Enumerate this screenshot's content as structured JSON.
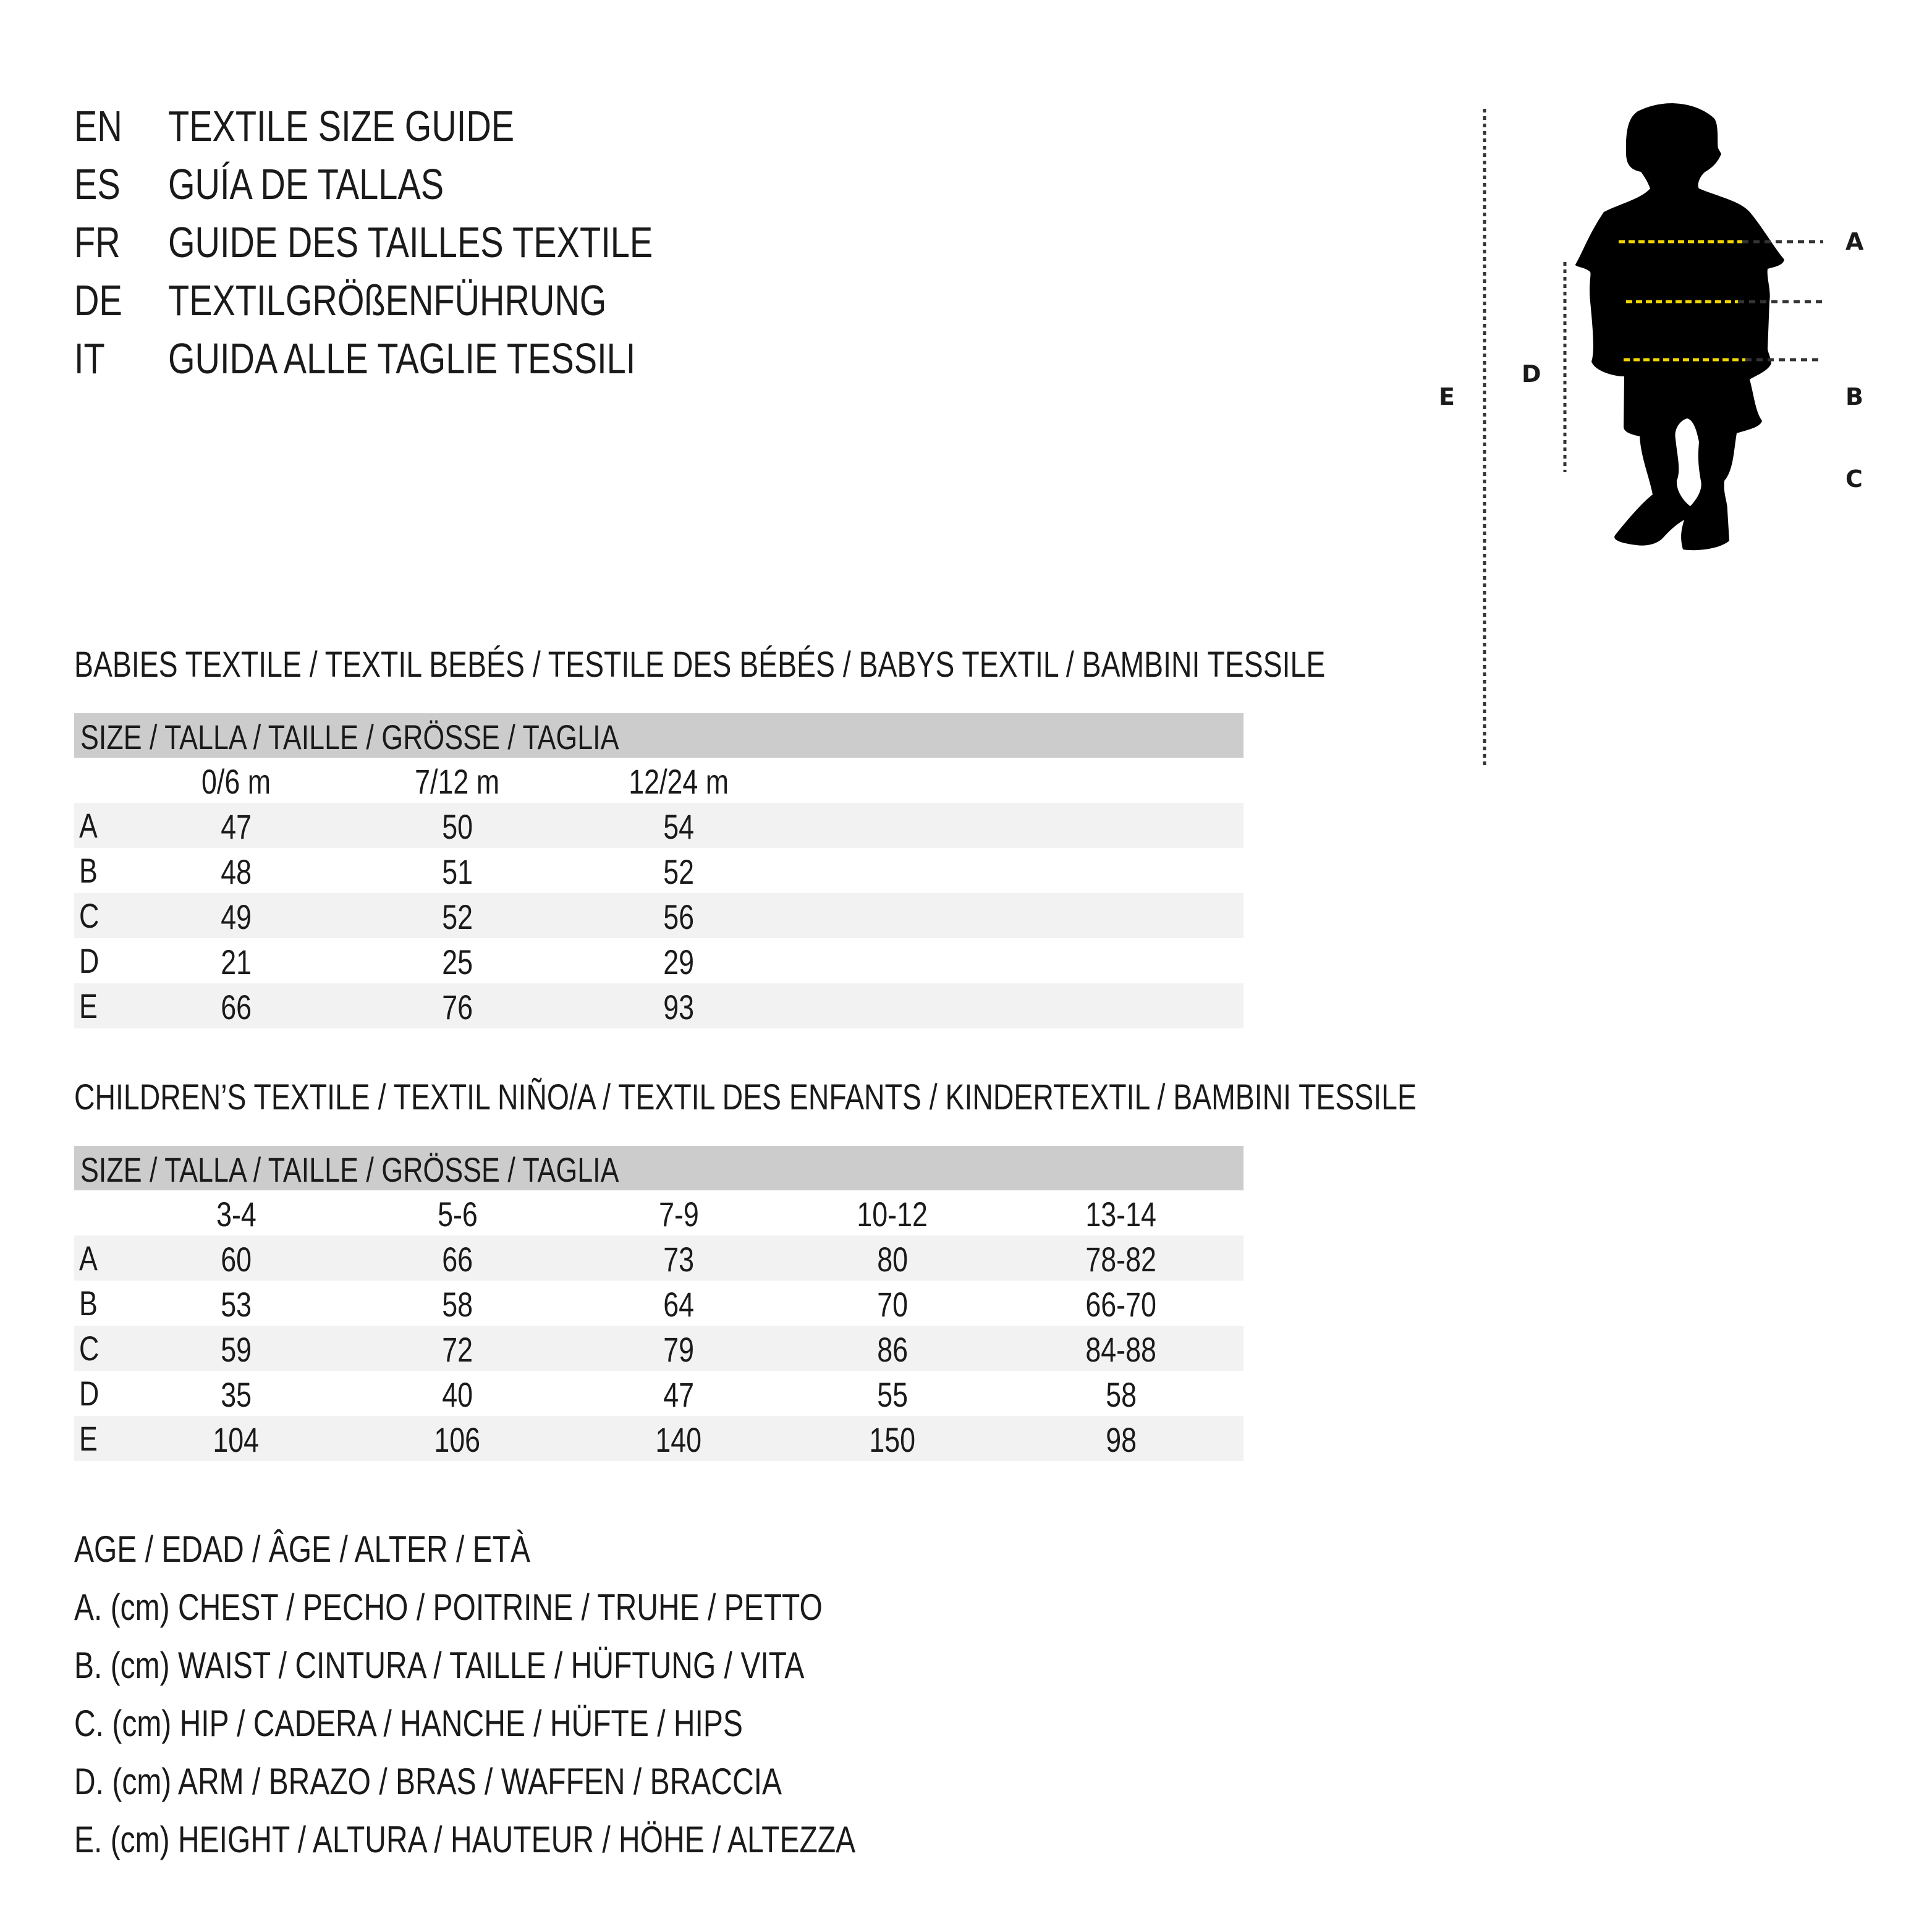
{
  "titles": [
    {
      "code": "EN",
      "text": "TEXTILE SIZE GUIDE"
    },
    {
      "code": "ES",
      "text": "GUÍA DE TALLAS"
    },
    {
      "code": "FR",
      "text": "GUIDE DES TAILLES TEXTILE"
    },
    {
      "code": "DE",
      "text": "TEXTILGRÖßENFÜHRUNG"
    },
    {
      "code": "IT",
      "text": "GUIDA ALLE TAGLIE TESSILI"
    }
  ],
  "figure": {
    "labels": {
      "A": "A",
      "B": "B",
      "C": "C",
      "D": "D",
      "E": "E"
    },
    "colors": {
      "measure_line": "#f2d600",
      "guide_line": "#333333",
      "silhouette": "#000000"
    }
  },
  "babies": {
    "heading": "BABIES TEXTILE / TEXTIL BEBÉS / TESTILE DES BÉBÉS / BABYS TEXTIL / BAMBINI TESSILE",
    "size_header": "SIZE / TALLA / TAILLE / GRÖSSE / TAGLIA",
    "columns": [
      "0/6 m",
      "7/12 m",
      "12/24 m"
    ],
    "rows": [
      {
        "label": "A",
        "values": [
          "47",
          "50",
          "54"
        ]
      },
      {
        "label": "B",
        "values": [
          "48",
          "51",
          "52"
        ]
      },
      {
        "label": "C",
        "values": [
          "49",
          "52",
          "56"
        ]
      },
      {
        "label": "D",
        "values": [
          "21",
          "25",
          "29"
        ]
      },
      {
        "label": "E",
        "values": [
          "66",
          "76",
          "93"
        ]
      }
    ]
  },
  "children": {
    "heading": "CHILDREN’S TEXTILE / TEXTIL NIÑO/A / TEXTIL DES ENFANTS / KINDERTEXTIL / BAMBINI TESSILE",
    "size_header": "SIZE / TALLA / TAILLE / GRÖSSE / TAGLIA",
    "columns": [
      "3-4",
      "5-6",
      "7-9",
      "10-12",
      "13-14"
    ],
    "rows": [
      {
        "label": "A",
        "values": [
          "60",
          "66",
          "73",
          "80",
          "78-82"
        ]
      },
      {
        "label": "B",
        "values": [
          "53",
          "58",
          "64",
          "70",
          "66-70"
        ]
      },
      {
        "label": "C",
        "values": [
          "59",
          "72",
          "79",
          "86",
          "84-88"
        ]
      },
      {
        "label": "D",
        "values": [
          "35",
          "40",
          "47",
          "55",
          "58"
        ]
      },
      {
        "label": "E",
        "values": [
          "104",
          "106",
          "140",
          "150",
          "98"
        ]
      }
    ]
  },
  "legend": [
    "AGE / EDAD / ÂGE / ALTER / ETÀ",
    "A. (cm) CHEST / PECHO / POITRINE / TRUHE / PETTO",
    "B. (cm) WAIST / CINTURA / TAILLE / HÜFTUNG / VITA",
    "C. (cm) HIP / CADERA / HANCHE / HÜFTE / HIPS",
    "D. (cm) ARM / BRAZO / BRAS / WAFFEN / BRACCIA",
    "E. (cm) HEIGHT / ALTURA / HAUTEUR / HÖHE / ALTEZZA"
  ]
}
